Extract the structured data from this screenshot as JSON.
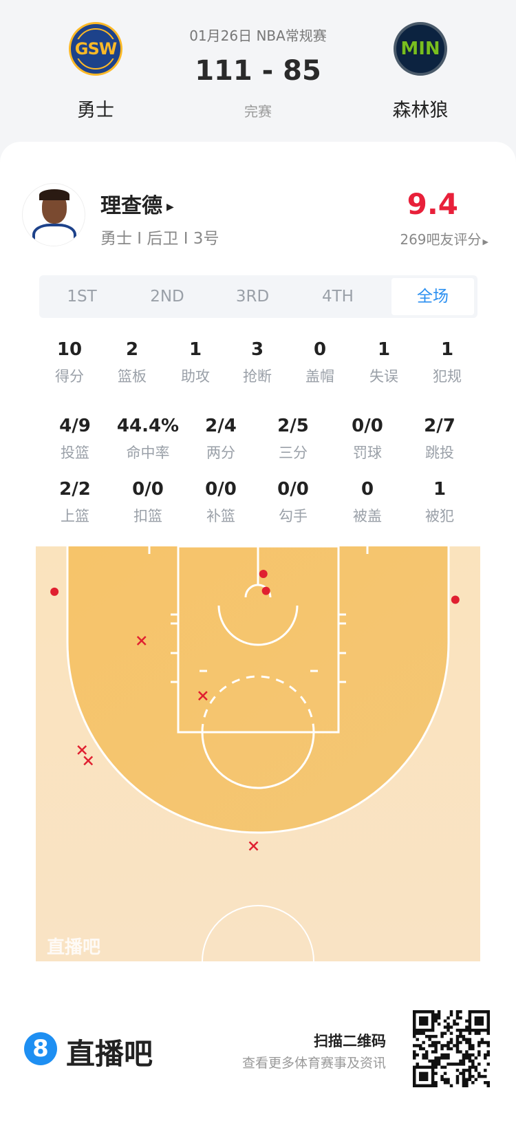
{
  "match": {
    "date_league": "01月26日 NBA常规赛",
    "score": "111 - 85",
    "status": "完赛",
    "home": {
      "abbr": "GSW",
      "name": "勇士",
      "color": "#1d428a",
      "accent": "#fdb927"
    },
    "away": {
      "abbr": "MIN",
      "name": "森林狼",
      "color": "#0c2340",
      "accent": "#78be20"
    }
  },
  "player": {
    "name": "理查德",
    "info": "勇士 I 后卫 I 3号",
    "rating": "9.4",
    "rating_color": "#e8203a",
    "rating_count": "269吧友评分"
  },
  "tabs": [
    {
      "label": "1ST"
    },
    {
      "label": "2ND"
    },
    {
      "label": "3RD"
    },
    {
      "label": "4TH"
    },
    {
      "label": "全场",
      "active": true
    }
  ],
  "stats_row1": [
    {
      "v": "10",
      "l": "得分"
    },
    {
      "v": "2",
      "l": "篮板"
    },
    {
      "v": "1",
      "l": "助攻"
    },
    {
      "v": "3",
      "l": "抢断"
    },
    {
      "v": "0",
      "l": "盖帽"
    },
    {
      "v": "1",
      "l": "失误"
    },
    {
      "v": "1",
      "l": "犯规"
    }
  ],
  "stats_row2": [
    {
      "v": "4/9",
      "l": "投篮"
    },
    {
      "v": "44.4%",
      "l": "命中率"
    },
    {
      "v": "2/4",
      "l": "两分"
    },
    {
      "v": "2/5",
      "l": "三分"
    },
    {
      "v": "0/0",
      "l": "罚球"
    },
    {
      "v": "2/7",
      "l": "跳投"
    }
  ],
  "stats_row3": [
    {
      "v": "2/2",
      "l": "上篮"
    },
    {
      "v": "0/0",
      "l": "扣篮"
    },
    {
      "v": "0/0",
      "l": "补篮"
    },
    {
      "v": "0/0",
      "l": "勾手"
    },
    {
      "v": "0",
      "l": "被盖"
    },
    {
      "v": "1",
      "l": "被犯"
    }
  ],
  "shot_chart": {
    "units": "feet from left sideline / baseline",
    "made_color": "#e02030",
    "shots": [
      {
        "x": 2.1,
        "y": 5.1,
        "made": true
      },
      {
        "x": 25.6,
        "y": 3.1,
        "made": true
      },
      {
        "x": 25.9,
        "y": 5.0,
        "made": true
      },
      {
        "x": 47.2,
        "y": 6.0,
        "made": true
      },
      {
        "x": 11.9,
        "y": 10.6,
        "made": false
      },
      {
        "x": 18.8,
        "y": 16.8,
        "made": false
      },
      {
        "x": 5.2,
        "y": 22.9,
        "made": false
      },
      {
        "x": 5.9,
        "y": 24.1,
        "made": false
      },
      {
        "x": 24.5,
        "y": 33.7,
        "made": false
      }
    ],
    "watermark": "直播吧"
  },
  "footer": {
    "brand_digit": "8",
    "brand": "直播吧",
    "scan_title": "扫描二维码",
    "scan_sub": "查看更多体育赛事及资讯",
    "brand_color": "#1e8ff2"
  }
}
